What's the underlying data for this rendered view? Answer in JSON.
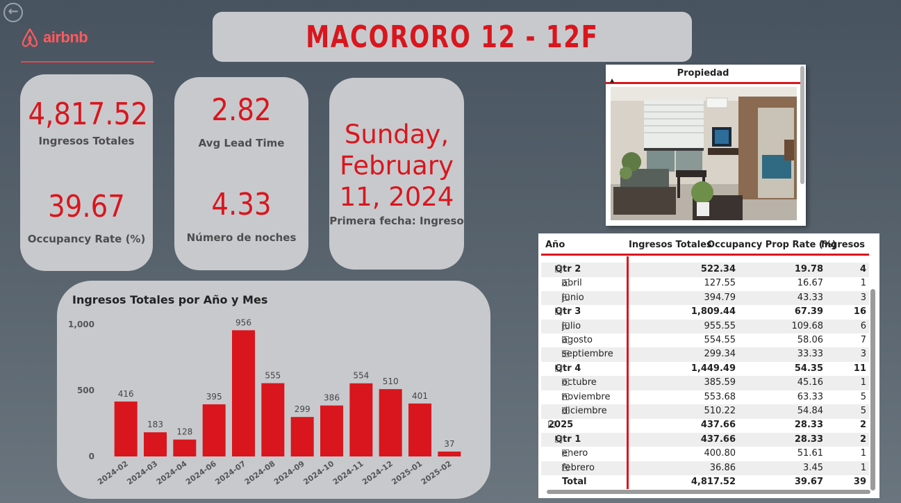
{
  "header": {
    "title": "MACORORO 12 - 12F",
    "brand": "airbnb",
    "accent_color": "#d9161d"
  },
  "kpis": {
    "ingresos_totales": {
      "value": "4,817.52",
      "label": "Ingresos Totales"
    },
    "occupancy_rate": {
      "value": "39.67",
      "label": "Occupancy Rate (%)"
    },
    "avg_lead_time": {
      "value": "2.82",
      "label": "Avg Lead Time"
    },
    "numero_noches": {
      "value": "4.33",
      "label": "Número de noches"
    },
    "primera_fecha": {
      "line1": "Sunday,",
      "line2": "February",
      "line3": "11, 2024",
      "label": "Primera fecha: Ingreso"
    }
  },
  "photo_card": {
    "header": "Propiedad"
  },
  "table": {
    "columns": [
      "Año",
      "Ingresos Totales",
      "Occupancy Prop Rate (%)",
      "Ingresos"
    ],
    "rows": [
      {
        "label": "Qtr 2",
        "level": 1,
        "icon": "⊟",
        "bold": true,
        "ingresos": "522.34",
        "occ": "19.78",
        "count": "4"
      },
      {
        "label": "abril",
        "level": 2,
        "icon": "⊞",
        "bold": false,
        "ingresos": "127.55",
        "occ": "16.67",
        "count": "1"
      },
      {
        "label": "junio",
        "level": 2,
        "icon": "⊞",
        "bold": false,
        "ingresos": "394.79",
        "occ": "43.33",
        "count": "3"
      },
      {
        "label": "Qtr 3",
        "level": 1,
        "icon": "⊟",
        "bold": true,
        "ingresos": "1,809.44",
        "occ": "67.39",
        "count": "16"
      },
      {
        "label": "julio",
        "level": 2,
        "icon": "⊞",
        "bold": false,
        "ingresos": "955.55",
        "occ": "109.68",
        "count": "6"
      },
      {
        "label": "agosto",
        "level": 2,
        "icon": "⊞",
        "bold": false,
        "ingresos": "554.55",
        "occ": "58.06",
        "count": "7"
      },
      {
        "label": "septiembre",
        "level": 2,
        "icon": "⊞",
        "bold": false,
        "ingresos": "299.34",
        "occ": "33.33",
        "count": "3"
      },
      {
        "label": "Qtr 4",
        "level": 1,
        "icon": "⊟",
        "bold": true,
        "ingresos": "1,449.49",
        "occ": "54.35",
        "count": "11"
      },
      {
        "label": "octubre",
        "level": 2,
        "icon": "⊞",
        "bold": false,
        "ingresos": "385.59",
        "occ": "45.16",
        "count": "1"
      },
      {
        "label": "noviembre",
        "level": 2,
        "icon": "⊞",
        "bold": false,
        "ingresos": "553.68",
        "occ": "63.33",
        "count": "5"
      },
      {
        "label": "diciembre",
        "level": 2,
        "icon": "⊞",
        "bold": false,
        "ingresos": "510.22",
        "occ": "54.84",
        "count": "5"
      },
      {
        "label": "2025",
        "level": 0,
        "icon": "⊟",
        "bold": true,
        "ingresos": "437.66",
        "occ": "28.33",
        "count": "2"
      },
      {
        "label": "Qtr 1",
        "level": 1,
        "icon": "⊟",
        "bold": true,
        "ingresos": "437.66",
        "occ": "28.33",
        "count": "2"
      },
      {
        "label": "enero",
        "level": 2,
        "icon": "⊞",
        "bold": false,
        "ingresos": "400.80",
        "occ": "51.61",
        "count": "1"
      },
      {
        "label": "febrero",
        "level": 2,
        "icon": "⊞",
        "bold": false,
        "ingresos": "36.86",
        "occ": "3.45",
        "count": "1"
      }
    ],
    "total": {
      "label": "Total",
      "ingresos": "4,817.52",
      "occ": "39.67",
      "count": "39"
    }
  },
  "chart_data": {
    "type": "bar",
    "title": "Ingresos Totales por Año y Mes",
    "xlabel": "",
    "ylabel": "",
    "categories": [
      "2024-02",
      "2024-03",
      "2024-04",
      "2024-06",
      "2024-07",
      "2024-08",
      "2024-09",
      "2024-10",
      "2024-11",
      "2024-12",
      "2025-01",
      "2025-02"
    ],
    "values": [
      416,
      183,
      128,
      395,
      956,
      555,
      299,
      386,
      554,
      510,
      401,
      37
    ],
    "y_ticks": [
      "0",
      "500",
      "1,000"
    ],
    "ylim": [
      0,
      1000
    ],
    "color": "#d9161d",
    "grid": false,
    "legend": "none"
  }
}
